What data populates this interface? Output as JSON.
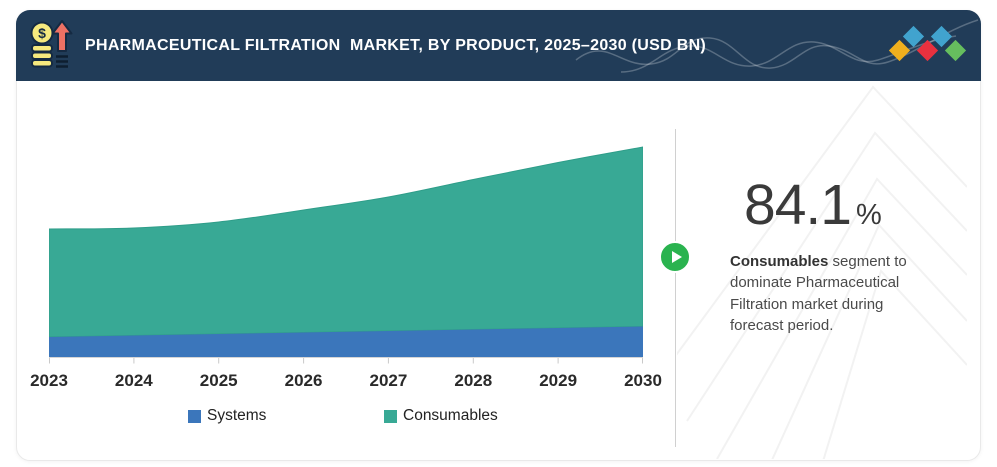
{
  "header": {
    "title": "PHARMACEUTICAL FILTRATION  MARKET, BY PRODUCT, 2025–2030 (USD BN)",
    "background": "#213C58",
    "icon": "money-growth-icon",
    "logo": {
      "colors": [
        "#EFAF1E",
        "#41A3CE",
        "#E8313F",
        "#41A3CE",
        "#66BE5E"
      ],
      "rows": [
        "bottom",
        "top",
        "bottom",
        "top",
        "bottom"
      ]
    }
  },
  "chart_data": {
    "type": "area",
    "stacked": true,
    "x": [
      "2023",
      "2024",
      "2025",
      "2026",
      "2027",
      "2028",
      "2029",
      "2030"
    ],
    "series": [
      {
        "name": "Systems",
        "color": "#3B76BB",
        "values": [
          20,
          21.5,
          23,
          24.5,
          26,
          27.5,
          29,
          30.5
        ]
      },
      {
        "name": "Consumables",
        "color": "#38A995",
        "edge_color": "#2F9D89",
        "values": [
          108,
          107.5,
          112,
          122.5,
          134,
          150,
          165.5,
          179.5
        ]
      }
    ],
    "ylim": [
      0,
      221
    ],
    "grid": false,
    "legend_position": "bottom"
  },
  "callout": {
    "value": "84.1",
    "unit": "%",
    "highlight": "Consumables",
    "text": " segment to dominate Pharmaceutical Filtration market during forecast period.",
    "play_color": "#2AB34F"
  },
  "colors": {
    "axis": "#D5D5D5",
    "tick": "#C9C9C9",
    "divider": "#D0D0D0",
    "card_border": "#E9E9E9",
    "watermark": "#F2F2F2",
    "year_label": "#2A2A2A",
    "big_number": "#3A3A3A",
    "body_text": "#4A4A4A"
  }
}
